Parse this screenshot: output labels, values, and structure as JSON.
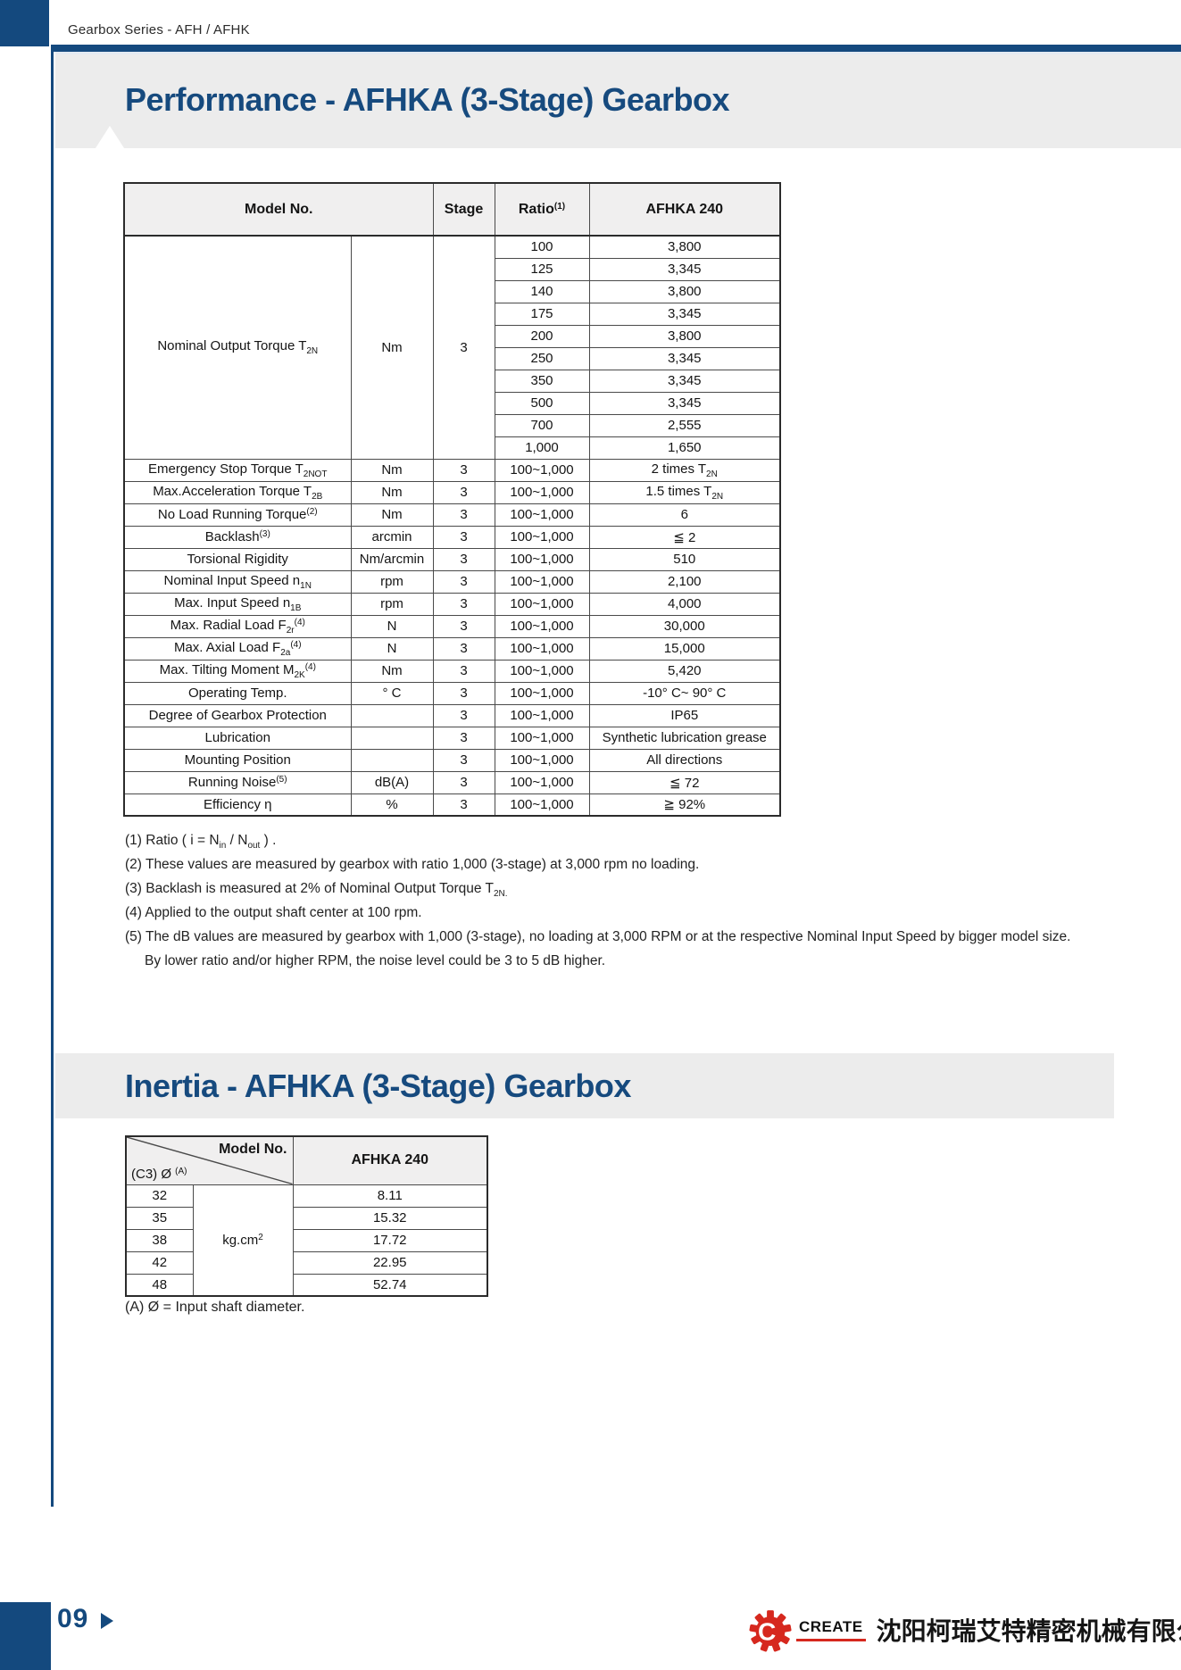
{
  "colors": {
    "navy": "#14497E",
    "banner_gray": "#ECECEC",
    "table_header_gray": "#F0EFEF",
    "logo_red": "#D6281E"
  },
  "header": {
    "series_label": "Gearbox Series - AFH / AFHK"
  },
  "performance": {
    "title": "Performance - AFHKA (3-Stage) Gearbox",
    "table": {
      "headers": {
        "model_no": "Model No.",
        "stage": "Stage",
        "ratio": "Ratio",
        "ratio_sup": "(1)",
        "model": "AFHKA 240"
      },
      "torque_block": {
        "label": [
          [
            "Nominal Output Torque T",
            "b"
          ],
          [
            "2N",
            "sub"
          ]
        ],
        "unit": "Nm",
        "stage": "3",
        "rows": [
          [
            "100",
            "3,800"
          ],
          [
            "125",
            "3,345"
          ],
          [
            "140",
            "3,800"
          ],
          [
            "175",
            "3,345"
          ],
          [
            "200",
            "3,800"
          ],
          [
            "250",
            "3,345"
          ],
          [
            "350",
            "3,345"
          ],
          [
            "500",
            "3,345"
          ],
          [
            "700",
            "2,555"
          ],
          [
            "1,000",
            "1,650"
          ]
        ]
      },
      "rows": [
        {
          "label": [
            [
              "Emergency Stop Torque T",
              "b"
            ],
            [
              "2NOT",
              "sub"
            ]
          ],
          "unit": "Nm",
          "stage": "3",
          "ratio": "100~1,000",
          "value": [
            [
              "2 times T",
              "b"
            ],
            [
              "2N",
              "sub"
            ]
          ]
        },
        {
          "label": [
            [
              "Max.Acceleration Torque T",
              "b"
            ],
            [
              "2B",
              "sub"
            ]
          ],
          "unit": "Nm",
          "stage": "3",
          "ratio": "100~1,000",
          "value": [
            [
              "1.5 times T",
              "b"
            ],
            [
              "2N",
              "sub"
            ]
          ]
        },
        {
          "label": [
            [
              "No Load Running Torque",
              "b"
            ],
            [
              "(2)",
              "sup"
            ]
          ],
          "unit": "Nm",
          "stage": "3",
          "ratio": "100~1,000",
          "value": [
            [
              "6",
              "b"
            ]
          ]
        },
        {
          "label": [
            [
              "Backlash",
              "b"
            ],
            [
              "(3)",
              "sup"
            ]
          ],
          "unit": "arcmin",
          "stage": "3",
          "ratio": "100~1,000",
          "value": [
            [
              "≦ 2",
              "b"
            ]
          ]
        },
        {
          "label": [
            [
              "Torsional Rigidity",
              "b"
            ]
          ],
          "unit": "Nm/arcmin",
          "stage": "3",
          "ratio": "100~1,000",
          "value": [
            [
              "510",
              "b"
            ]
          ]
        },
        {
          "label": [
            [
              "Nominal Input Speed n",
              "b"
            ],
            [
              "1N",
              "sub"
            ]
          ],
          "unit": "rpm",
          "stage": "3",
          "ratio": "100~1,000",
          "value": [
            [
              "2,100",
              "b"
            ]
          ]
        },
        {
          "label": [
            [
              "Max. Input Speed n",
              "b"
            ],
            [
              "1B",
              "sub"
            ]
          ],
          "unit": "rpm",
          "stage": "3",
          "ratio": "100~1,000",
          "value": [
            [
              "4,000",
              "b"
            ]
          ]
        },
        {
          "label": [
            [
              "Max. Radial Load F",
              "b"
            ],
            [
              "2r",
              "sub"
            ],
            [
              "(4)",
              "sup"
            ]
          ],
          "unit": "N",
          "stage": "3",
          "ratio": "100~1,000",
          "value": [
            [
              "30,000",
              "b"
            ]
          ]
        },
        {
          "label": [
            [
              "Max. Axial Load F",
              "b"
            ],
            [
              "2a",
              "sub"
            ],
            [
              "(4)",
              "sup"
            ]
          ],
          "unit": "N",
          "stage": "3",
          "ratio": "100~1,000",
          "value": [
            [
              "15,000",
              "b"
            ]
          ]
        },
        {
          "label": [
            [
              "Max. Tilting Moment  M",
              "b"
            ],
            [
              "2K",
              "sub"
            ],
            [
              "(4)",
              "sup"
            ]
          ],
          "unit": "Nm",
          "stage": "3",
          "ratio": "100~1,000",
          "value": [
            [
              "5,420",
              "b"
            ]
          ]
        },
        {
          "label": [
            [
              "Operating Temp.",
              "b"
            ]
          ],
          "unit": "° C",
          "stage": "3",
          "ratio": "100~1,000",
          "value": [
            [
              "-10° C~ 90° C",
              "b"
            ]
          ]
        },
        {
          "label": [
            [
              "Degree of Gearbox  Protection",
              "b"
            ]
          ],
          "unit": "",
          "stage": "3",
          "ratio": "100~1,000",
          "value": [
            [
              "IP65",
              "b"
            ]
          ]
        },
        {
          "label": [
            [
              "Lubrication",
              "b"
            ]
          ],
          "unit": "",
          "stage": "3",
          "ratio": "100~1,000",
          "value": [
            [
              "Synthetic lubrication grease",
              "b"
            ]
          ]
        },
        {
          "label": [
            [
              "Mounting Position",
              "b"
            ]
          ],
          "unit": "",
          "stage": "3",
          "ratio": "100~1,000",
          "value": [
            [
              "All directions",
              "b"
            ]
          ]
        },
        {
          "label": [
            [
              "Running Noise",
              "b"
            ],
            [
              "(5)",
              "sup"
            ]
          ],
          "unit": "dB(A)",
          "stage": "3",
          "ratio": "100~1,000",
          "value": [
            [
              "≦ 72",
              "b"
            ]
          ]
        },
        {
          "label": [
            [
              "Efficiency η",
              "b"
            ]
          ],
          "unit": "%",
          "stage": "3",
          "ratio": "100~1,000",
          "value": [
            [
              "≧ 92%",
              "b"
            ]
          ]
        }
      ]
    },
    "footnotes": [
      {
        "parts": [
          [
            "(1) Ratio ( i = N",
            "b"
          ],
          [
            "in",
            "sub"
          ],
          [
            " / N",
            "b"
          ],
          [
            "out",
            "sub"
          ],
          [
            " ) .",
            "b"
          ]
        ],
        "indent": false
      },
      {
        "parts": [
          [
            "(2) These values are measured by gearbox with ratio 1,000 (3-stage) at 3,000 rpm no loading.",
            "b"
          ]
        ],
        "indent": false
      },
      {
        "parts": [
          [
            "(3) Backlash is measured at 2% of Nominal Output Torque T",
            "b"
          ],
          [
            "2N.",
            "sub"
          ]
        ],
        "indent": false
      },
      {
        "parts": [
          [
            "(4) Applied to the output shaft center at 100 rpm.",
            "b"
          ]
        ],
        "indent": false
      },
      {
        "parts": [
          [
            "(5) The dB values are measured by gearbox with 1,000 (3-stage), no loading at 3,000 RPM or at the respective Nominal Input Speed by bigger model size.",
            "b"
          ]
        ],
        "indent": false
      },
      {
        "parts": [
          [
            "By lower ratio and/or higher RPM, the noise level could be 3 to 5 dB higher.",
            "b"
          ]
        ],
        "indent": true
      }
    ]
  },
  "inertia": {
    "title": "Inertia - AFHKA (3-Stage) Gearbox",
    "table": {
      "corner_top": "Model No.",
      "corner_bottom": [
        [
          "(C3) Ø ",
          "b"
        ],
        [
          "(A)",
          "sup"
        ]
      ],
      "model": "AFHKA 240",
      "unit": [
        [
          "kg.cm",
          "b"
        ],
        [
          "2",
          "sup"
        ]
      ],
      "rows": [
        [
          "32",
          "8.11"
        ],
        [
          "35",
          "15.32"
        ],
        [
          "38",
          "17.72"
        ],
        [
          "42",
          "22.95"
        ],
        [
          "48",
          "52.74"
        ]
      ]
    },
    "footnote": "(A)  Ø = Input shaft diameter."
  },
  "footer": {
    "page_number": "09",
    "logo_text": "CREATE",
    "logo_gear_letter": "C",
    "company_name": "沈阳柯瑞艾特精密机械有限公司"
  }
}
